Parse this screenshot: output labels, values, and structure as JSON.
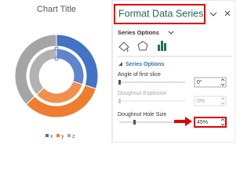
{
  "chart": {
    "type": "doughnut",
    "title": "Chart Title",
    "categories": [
      "x",
      "y",
      "z"
    ],
    "colors": [
      "#4472c4",
      "#ed7d31",
      "#a5a5a5"
    ],
    "series": [
      {
        "values": [
          30,
          33,
          37
        ]
      },
      {
        "values": [
          30,
          33,
          37
        ]
      }
    ]
  },
  "pane": {
    "title": "Format Data Series",
    "tab": "Series Options",
    "section": "Series Options",
    "fields": [
      {
        "label": "Angle of first slice",
        "value": "0°"
      },
      {
        "label": "Doughnut Explosion",
        "value": "0%"
      },
      {
        "label": "Doughnut Hole Size",
        "value": "45%"
      }
    ]
  }
}
